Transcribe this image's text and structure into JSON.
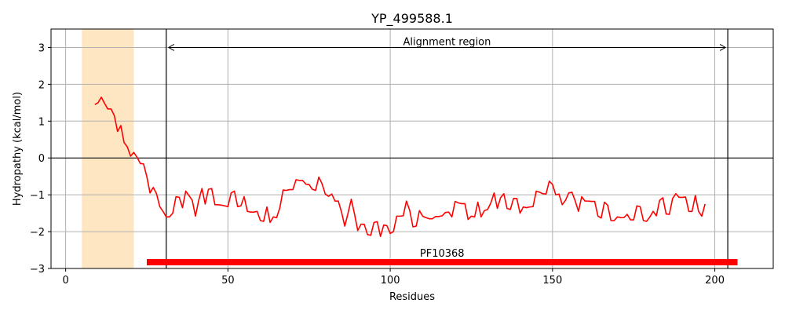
{
  "chart_data": {
    "type": "line",
    "title": "YP_499588.1",
    "xlabel": "Residues",
    "ylabel": "Hydropathy (kcal/mol)",
    "xlim": [
      -4.5,
      218
    ],
    "ylim": [
      -3,
      3.5
    ],
    "xticks": [
      0,
      50,
      100,
      150,
      200
    ],
    "yticks": [
      -3,
      -2,
      -1,
      0,
      1,
      2,
      3
    ],
    "grid": true,
    "series": [
      {
        "color": "#ff0000",
        "x": [
          9,
          10,
          11,
          12,
          13,
          14,
          15,
          16,
          17,
          18,
          19,
          20,
          21,
          22,
          23,
          24,
          25,
          26,
          27,
          28,
          29,
          30,
          31,
          32,
          33,
          34,
          35,
          36,
          37,
          38,
          39,
          40,
          41,
          42,
          43,
          44,
          45,
          46,
          47,
          48,
          49,
          50,
          51,
          52,
          53,
          54,
          55,
          56,
          57,
          58,
          59,
          60,
          61,
          62,
          63,
          64,
          65,
          66,
          67,
          68,
          69,
          70,
          71,
          72,
          73,
          74,
          75,
          76,
          77,
          78,
          79,
          80,
          81,
          82,
          83,
          84,
          85,
          86,
          87,
          88,
          89,
          90,
          91,
          92,
          93,
          94,
          95,
          96,
          97,
          98,
          99,
          100,
          101,
          102,
          103,
          104,
          105,
          106,
          107,
          108,
          109,
          110,
          111,
          112,
          113,
          114,
          115,
          116,
          117,
          118,
          119,
          120,
          121,
          122,
          123,
          124,
          125,
          126,
          127,
          128,
          129,
          130,
          131,
          132,
          133,
          134,
          135,
          136,
          137,
          138,
          139,
          140,
          141,
          142,
          143,
          144,
          145,
          146,
          147,
          148,
          149,
          150,
          151,
          152,
          153,
          154,
          155,
          156,
          157,
          158,
          159,
          160,
          161,
          162,
          163,
          164,
          165,
          166,
          167,
          168,
          169,
          170,
          171,
          172,
          173,
          174,
          175,
          176,
          177,
          178,
          179,
          180,
          181,
          182,
          183,
          184,
          185,
          186,
          187,
          188,
          189,
          190,
          191,
          192,
          193,
          194,
          195,
          196,
          197
        ],
        "y": [
          1.45,
          1.5,
          1.65,
          1.48,
          1.33,
          1.33,
          1.15,
          0.72,
          0.88,
          0.42,
          0.3,
          0.05,
          0.15,
          0.02,
          -0.15,
          -0.16,
          -0.5,
          -0.95,
          -0.8,
          -0.97,
          -1.32,
          -1.45,
          -1.6,
          -1.6,
          -1.5,
          -1.05,
          -1.07,
          -1.35,
          -0.9,
          -1.02,
          -1.15,
          -1.58,
          -1.15,
          -0.83,
          -1.25,
          -0.85,
          -0.83,
          -1.27,
          -1.27,
          -1.28,
          -1.3,
          -1.32,
          -0.95,
          -0.9,
          -1.32,
          -1.3,
          -1.05,
          -1.45,
          -1.47,
          -1.47,
          -1.45,
          -1.7,
          -1.72,
          -1.33,
          -1.75,
          -1.6,
          -1.62,
          -1.35,
          -0.87,
          -0.88,
          -0.86,
          -0.86,
          -0.59,
          -0.61,
          -0.61,
          -0.71,
          -0.72,
          -0.85,
          -0.88,
          -0.52,
          -0.7,
          -0.98,
          -1.04,
          -0.98,
          -1.17,
          -1.17,
          -1.47,
          -1.85,
          -1.5,
          -1.12,
          -1.52,
          -1.97,
          -1.8,
          -1.8,
          -2.08,
          -2.1,
          -1.75,
          -1.73,
          -2.13,
          -1.82,
          -1.84,
          -2.05,
          -2.0,
          -1.58,
          -1.58,
          -1.57,
          -1.17,
          -1.42,
          -1.87,
          -1.85,
          -1.43,
          -1.58,
          -1.62,
          -1.65,
          -1.65,
          -1.59,
          -1.59,
          -1.57,
          -1.48,
          -1.47,
          -1.6,
          -1.18,
          -1.22,
          -1.24,
          -1.24,
          -1.67,
          -1.58,
          -1.6,
          -1.2,
          -1.6,
          -1.43,
          -1.4,
          -1.22,
          -0.95,
          -1.37,
          -1.08,
          -0.97,
          -1.37,
          -1.4,
          -1.1,
          -1.1,
          -1.5,
          -1.33,
          -1.35,
          -1.33,
          -1.32,
          -0.9,
          -0.93,
          -0.97,
          -0.98,
          -0.63,
          -0.72,
          -1.0,
          -0.98,
          -1.27,
          -1.15,
          -0.95,
          -0.93,
          -1.17,
          -1.45,
          -1.05,
          -1.17,
          -1.17,
          -1.18,
          -1.18,
          -1.58,
          -1.63,
          -1.2,
          -1.28,
          -1.7,
          -1.7,
          -1.6,
          -1.62,
          -1.62,
          -1.53,
          -1.68,
          -1.68,
          -1.3,
          -1.32,
          -1.7,
          -1.72,
          -1.6,
          -1.45,
          -1.57,
          -1.15,
          -1.08,
          -1.52,
          -1.53,
          -1.1,
          -0.97,
          -1.07,
          -1.07,
          -1.06,
          -1.45,
          -1.45,
          -1.02,
          -1.45,
          -1.58,
          -1.25
        ]
      }
    ],
    "shaded_region": {
      "x_range": [
        5,
        21
      ],
      "color": "#ffe6c2"
    },
    "vlines": [
      31,
      204
    ],
    "hline_y": 0,
    "annotations": [
      {
        "text": "Alignment region",
        "arrow_x_range": [
          31,
          204
        ],
        "arrow_y": 3
      }
    ],
    "domain_bar": {
      "label": "PF10368",
      "x_range": [
        25,
        207
      ],
      "y": -2.83,
      "color": "#ff0000"
    }
  }
}
